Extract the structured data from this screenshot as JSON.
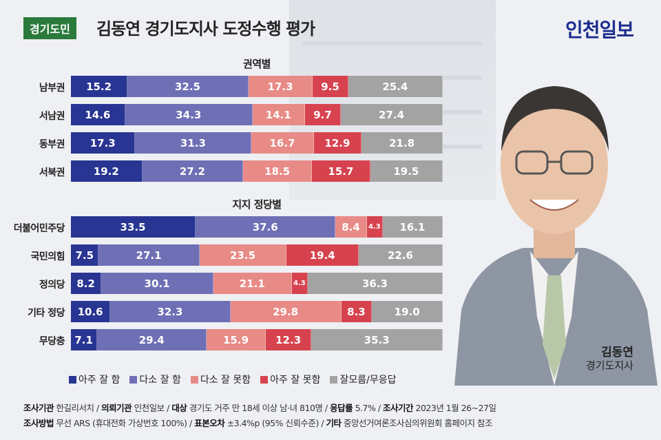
{
  "header": {
    "badge": "경기도민",
    "title": "김동연 경기도지사 도정수행 평가",
    "brand": "인천일보"
  },
  "person": {
    "name": "김동연",
    "title": "경기도지사"
  },
  "colors": {
    "very_good": "#283593",
    "somewhat_good": "#6e6fb5",
    "somewhat_bad": "#e88a86",
    "very_bad": "#d6434f",
    "dont_know": "#a3a3a3",
    "badge": "#2a7a3b",
    "brand": "#1b2c8f"
  },
  "chart_data": [
    {
      "type": "bar",
      "stacked": true,
      "orientation": "horizontal",
      "title": "권역별",
      "categories": [
        "남부권",
        "서남권",
        "동부권",
        "서북권"
      ],
      "series": [
        {
          "name": "아주 잘 함",
          "values": [
            15.2,
            14.6,
            17.3,
            19.2
          ]
        },
        {
          "name": "다소 잘 함",
          "values": [
            32.5,
            34.3,
            31.3,
            27.2
          ]
        },
        {
          "name": "다소 잘 못함",
          "values": [
            17.3,
            14.1,
            16.7,
            18.5
          ]
        },
        {
          "name": "아주 잘 못함",
          "values": [
            9.5,
            9.7,
            12.9,
            15.7
          ]
        },
        {
          "name": "잘모름/무응답",
          "values": [
            25.4,
            27.4,
            21.8,
            19.5
          ]
        }
      ]
    },
    {
      "type": "bar",
      "stacked": true,
      "orientation": "horizontal",
      "title": "지지 정당별",
      "categories": [
        "더불어민주당",
        "국민의힘",
        "정의당",
        "기타 정당",
        "무당층"
      ],
      "series": [
        {
          "name": "아주 잘 함",
          "values": [
            33.5,
            7.5,
            8.2,
            10.6,
            7.1
          ]
        },
        {
          "name": "다소 잘 함",
          "values": [
            37.6,
            27.1,
            30.1,
            32.3,
            29.4
          ]
        },
        {
          "name": "다소 잘 못함",
          "values": [
            8.4,
            23.5,
            21.1,
            29.8,
            15.9
          ]
        },
        {
          "name": "아주 잘 못함",
          "values": [
            4.3,
            19.4,
            4.3,
            8.3,
            12.3
          ]
        },
        {
          "name": "잘모름/무응답",
          "values": [
            16.1,
            22.6,
            36.3,
            19.0,
            35.3
          ]
        }
      ]
    }
  ],
  "legend": [
    "아주 잘 함",
    "다소 잘 함",
    "다소 잘 못함",
    "아주 잘 못함",
    "잘모름/무응답"
  ],
  "footer": {
    "line1": [
      {
        "k": "조사기관",
        "v": "한길리서치"
      },
      {
        "k": "의뢰기관",
        "v": "인천일보"
      },
      {
        "k": "대상",
        "v": "경기도 거주 만 18세 이상 남·녀 810명"
      },
      {
        "k": "응답률",
        "v": "5.7%"
      },
      {
        "k": "조사기간",
        "v": "2023년 1월 26~27일"
      }
    ],
    "line2": [
      {
        "k": "조사방법",
        "v": "무선 ARS (휴대전화 가상번호 100%)"
      },
      {
        "k": "표본오차",
        "v": "±3.4%p (95% 신뢰수준)"
      },
      {
        "k": "기타",
        "v": "중앙선거여론조사심의위원회 홈페이지 참조"
      }
    ]
  }
}
